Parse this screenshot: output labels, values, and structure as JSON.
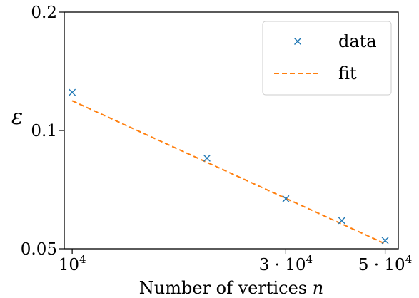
{
  "chart_data": {
    "type": "scatter",
    "xlabel": "Number of vertices",
    "xlabel_var": "n",
    "ylabel": "ε",
    "xscale": "log",
    "yscale": "log",
    "xlim": [
      9600,
      53500
    ],
    "ylim": [
      0.05,
      0.2
    ],
    "grid": false,
    "legend_position": "top-right",
    "x_ticks": [
      {
        "value": 10000,
        "base": "10",
        "exp": "4"
      },
      {
        "value": 30000,
        "base": "3 · 10",
        "exp": "4"
      },
      {
        "value": 50000,
        "base": "5 · 10",
        "exp": "4"
      }
    ],
    "y_ticks": [
      {
        "value": 0.2,
        "label": "0.2"
      },
      {
        "value": 0.1,
        "label": "0.1"
      },
      {
        "value": 0.05,
        "label": "0.05"
      }
    ],
    "series": [
      {
        "name": "data",
        "marker": "x",
        "color": "#1f77b4",
        "points": [
          {
            "x": 10000,
            "y": 0.125
          },
          {
            "x": 20000,
            "y": 0.085
          },
          {
            "x": 30000,
            "y": 0.067
          },
          {
            "x": 40000,
            "y": 0.059
          },
          {
            "x": 50000,
            "y": 0.0525
          }
        ]
      },
      {
        "name": "fit",
        "style": "dashed",
        "color": "#ff7f0e",
        "points": [
          {
            "x": 10000,
            "y": 0.119
          },
          {
            "x": 50000,
            "y": 0.0515
          }
        ]
      }
    ]
  }
}
